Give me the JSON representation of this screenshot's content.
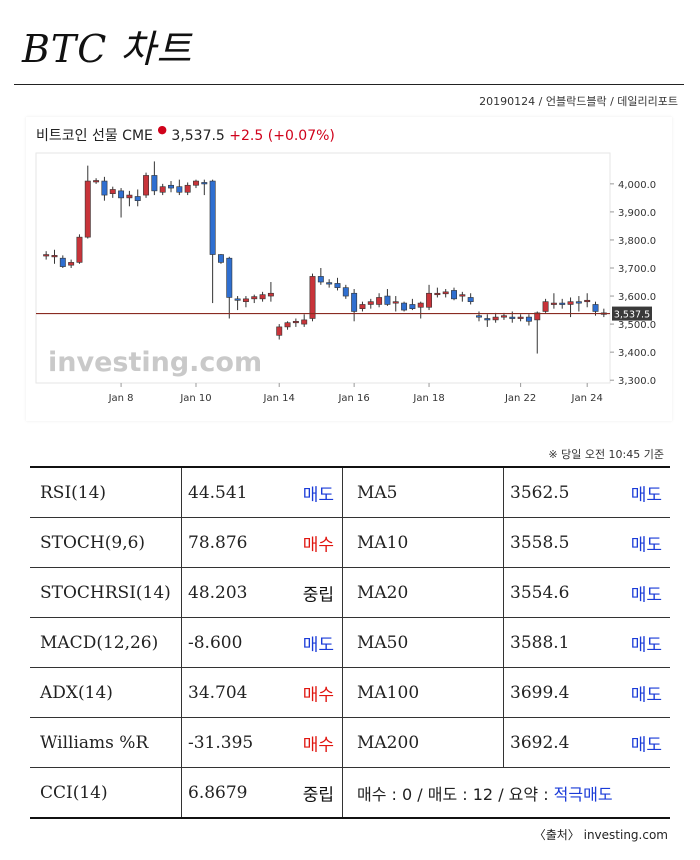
{
  "header": {
    "title": "BTC 차트",
    "byline": "20190124 / 언블락드블락 / 데일리리포트"
  },
  "chart_header": {
    "instrument": "비트코인 선물 CME",
    "price": "3,537.5",
    "change": "+2.5",
    "change_pct": "(+0.07%)"
  },
  "chart_data": {
    "type": "candlestick",
    "x_tick_labels": [
      "Jan 8",
      "Jan 10",
      "Jan 14",
      "Jan 16",
      "Jan 18",
      "Jan 22",
      "Jan 24"
    ],
    "y_tick_labels": [
      "4,000.0",
      "3,900.0",
      "3,800.0",
      "3,700.0",
      "3,600.0",
      "3,500.0",
      "3,400.0",
      "3,300.0"
    ],
    "y_ticks": [
      4000,
      3900,
      3800,
      3700,
      3600,
      3500,
      3400,
      3300
    ],
    "ylim": [
      3290,
      4110
    ],
    "last_price": 3537.5,
    "last_price_label": "3,537.5",
    "watermark": "investing.com",
    "up_color": "#c8343a",
    "down_color": "#2f6fd0",
    "price_line_color": "#8a2b22",
    "candles": [
      {
        "o": 3745,
        "h": 3760,
        "l": 3730,
        "c": 3748
      },
      {
        "o": 3740,
        "h": 3765,
        "l": 3715,
        "c": 3745
      },
      {
        "o": 3735,
        "h": 3745,
        "l": 3700,
        "c": 3705
      },
      {
        "o": 3710,
        "h": 3730,
        "l": 3700,
        "c": 3720
      },
      {
        "o": 3720,
        "h": 3820,
        "l": 3715,
        "c": 3810
      },
      {
        "o": 3810,
        "h": 4065,
        "l": 3805,
        "c": 4010
      },
      {
        "o": 4010,
        "h": 4020,
        "l": 4000,
        "c": 4012
      },
      {
        "o": 4010,
        "h": 4025,
        "l": 3940,
        "c": 3960
      },
      {
        "o": 3965,
        "h": 3990,
        "l": 3950,
        "c": 3980
      },
      {
        "o": 3975,
        "h": 3985,
        "l": 3880,
        "c": 3950
      },
      {
        "o": 3950,
        "h": 3975,
        "l": 3920,
        "c": 3960
      },
      {
        "o": 3955,
        "h": 3980,
        "l": 3920,
        "c": 3940
      },
      {
        "o": 3960,
        "h": 4040,
        "l": 3950,
        "c": 4030
      },
      {
        "o": 4030,
        "h": 4080,
        "l": 3960,
        "c": 3975
      },
      {
        "o": 3970,
        "h": 4000,
        "l": 3960,
        "c": 3990
      },
      {
        "o": 3995,
        "h": 4010,
        "l": 3970,
        "c": 3985
      },
      {
        "o": 3990,
        "h": 4015,
        "l": 3960,
        "c": 3970
      },
      {
        "o": 3970,
        "h": 4005,
        "l": 3960,
        "c": 3995
      },
      {
        "o": 3995,
        "h": 4015,
        "l": 3985,
        "c": 4010
      },
      {
        "o": 4005,
        "h": 4015,
        "l": 3960,
        "c": 4000
      },
      {
        "o": 4010,
        "h": 4015,
        "l": 3575,
        "c": 3748
      },
      {
        "o": 3748,
        "h": 3750,
        "l": 3715,
        "c": 3720
      },
      {
        "o": 3735,
        "h": 3740,
        "l": 3520,
        "c": 3595
      },
      {
        "o": 3590,
        "h": 3600,
        "l": 3550,
        "c": 3585
      },
      {
        "o": 3580,
        "h": 3600,
        "l": 3560,
        "c": 3590
      },
      {
        "o": 3590,
        "h": 3605,
        "l": 3575,
        "c": 3598
      },
      {
        "o": 3590,
        "h": 3615,
        "l": 3580,
        "c": 3605
      },
      {
        "o": 3600,
        "h": 3650,
        "l": 3580,
        "c": 3610
      },
      {
        "o": 3460,
        "h": 3500,
        "l": 3445,
        "c": 3490
      },
      {
        "o": 3490,
        "h": 3510,
        "l": 3480,
        "c": 3505
      },
      {
        "o": 3505,
        "h": 3520,
        "l": 3490,
        "c": 3510
      },
      {
        "o": 3500,
        "h": 3535,
        "l": 3490,
        "c": 3515
      },
      {
        "o": 3520,
        "h": 3680,
        "l": 3510,
        "c": 3670
      },
      {
        "o": 3670,
        "h": 3700,
        "l": 3640,
        "c": 3650
      },
      {
        "o": 3648,
        "h": 3660,
        "l": 3630,
        "c": 3645
      },
      {
        "o": 3645,
        "h": 3665,
        "l": 3620,
        "c": 3630
      },
      {
        "o": 3630,
        "h": 3640,
        "l": 3590,
        "c": 3600
      },
      {
        "o": 3610,
        "h": 3625,
        "l": 3510,
        "c": 3545
      },
      {
        "o": 3555,
        "h": 3580,
        "l": 3545,
        "c": 3570
      },
      {
        "o": 3570,
        "h": 3590,
        "l": 3555,
        "c": 3580
      },
      {
        "o": 3570,
        "h": 3610,
        "l": 3560,
        "c": 3595
      },
      {
        "o": 3600,
        "h": 3625,
        "l": 3565,
        "c": 3570
      },
      {
        "o": 3575,
        "h": 3600,
        "l": 3545,
        "c": 3580
      },
      {
        "o": 3575,
        "h": 3580,
        "l": 3545,
        "c": 3550
      },
      {
        "o": 3570,
        "h": 3590,
        "l": 3550,
        "c": 3555
      },
      {
        "o": 3560,
        "h": 3580,
        "l": 3520,
        "c": 3575
      },
      {
        "o": 3560,
        "h": 3640,
        "l": 3550,
        "c": 3610
      },
      {
        "o": 3605,
        "h": 3630,
        "l": 3595,
        "c": 3610
      },
      {
        "o": 3608,
        "h": 3625,
        "l": 3595,
        "c": 3615
      },
      {
        "o": 3620,
        "h": 3630,
        "l": 3585,
        "c": 3590
      },
      {
        "o": 3600,
        "h": 3615,
        "l": 3580,
        "c": 3605
      },
      {
        "o": 3595,
        "h": 3610,
        "l": 3570,
        "c": 3580
      },
      {
        "o": 3530,
        "h": 3545,
        "l": 3510,
        "c": 3525
      },
      {
        "o": 3520,
        "h": 3535,
        "l": 3490,
        "c": 3515
      },
      {
        "o": 3515,
        "h": 3540,
        "l": 3505,
        "c": 3525
      },
      {
        "o": 3525,
        "h": 3540,
        "l": 3515,
        "c": 3530
      },
      {
        "o": 3525,
        "h": 3545,
        "l": 3505,
        "c": 3520
      },
      {
        "o": 3520,
        "h": 3535,
        "l": 3510,
        "c": 3525
      },
      {
        "o": 3525,
        "h": 3535,
        "l": 3495,
        "c": 3510
      },
      {
        "o": 3515,
        "h": 3545,
        "l": 3395,
        "c": 3540
      },
      {
        "o": 3545,
        "h": 3590,
        "l": 3540,
        "c": 3580
      },
      {
        "o": 3570,
        "h": 3610,
        "l": 3555,
        "c": 3575
      },
      {
        "o": 3575,
        "h": 3590,
        "l": 3555,
        "c": 3570
      },
      {
        "o": 3570,
        "h": 3595,
        "l": 3525,
        "c": 3580
      },
      {
        "o": 3580,
        "h": 3600,
        "l": 3545,
        "c": 3575
      },
      {
        "o": 3580,
        "h": 3610,
        "l": 3560,
        "c": 3585
      },
      {
        "o": 3570,
        "h": 3580,
        "l": 3530,
        "c": 3545
      },
      {
        "o": 3540,
        "h": 3555,
        "l": 3525,
        "c": 3537
      }
    ],
    "x_tick_candle_index": [
      9,
      18,
      28,
      37,
      46,
      57,
      65
    ]
  },
  "note": "※ 당일 오전 10:45 기준",
  "indicators": {
    "rows": [
      {
        "name": "RSI(14)",
        "value": "44.541",
        "signal": "매도",
        "signal_type": "sell",
        "ma": "MA5",
        "ma_value": "3562.5",
        "ma_signal": "매도",
        "ma_signal_type": "sell"
      },
      {
        "name": "STOCH(9,6)",
        "value": "78.876",
        "signal": "매수",
        "signal_type": "buy",
        "ma": "MA10",
        "ma_value": "3558.5",
        "ma_signal": "매도",
        "ma_signal_type": "sell"
      },
      {
        "name": "STOCHRSI(14)",
        "value": "48.203",
        "signal": "중립",
        "signal_type": "neutral",
        "ma": "MA20",
        "ma_value": "3554.6",
        "ma_signal": "매도",
        "ma_signal_type": "sell"
      },
      {
        "name": "MACD(12,26)",
        "value": "-8.600",
        "signal": "매도",
        "signal_type": "sell",
        "ma": "MA50",
        "ma_value": "3588.1",
        "ma_signal": "매도",
        "ma_signal_type": "sell"
      },
      {
        "name": "ADX(14)",
        "value": "34.704",
        "signal": "매수",
        "signal_type": "buy",
        "ma": "MA100",
        "ma_value": "3699.4",
        "ma_signal": "매도",
        "ma_signal_type": "sell"
      },
      {
        "name": "Williams %R",
        "value": "-31.395",
        "signal": "매수",
        "signal_type": "buy",
        "ma": "MA200",
        "ma_value": "3692.4",
        "ma_signal": "매도",
        "ma_signal_type": "sell"
      }
    ],
    "last_row": {
      "name": "CCI(14)",
      "value": "6.8679",
      "signal": "중립",
      "signal_type": "neutral"
    },
    "summary": {
      "text": "매수 : 0 / 매도 : 12 / 요약 : ",
      "verdict": "적극매도"
    }
  },
  "source": "〈출처〉 investing.com"
}
